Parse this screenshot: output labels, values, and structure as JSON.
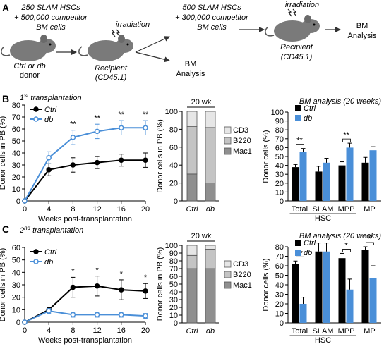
{
  "panel_a": {
    "letter": "A",
    "step1": [
      "250 SLAM HSCs",
      "+ 500,000 competitor",
      "BM cells"
    ],
    "irradiation_1": "irradiation",
    "donor": [
      "Ctrl or db",
      "donor"
    ],
    "recipient_1": [
      "Recipient",
      "(CD45.1)"
    ],
    "step2": [
      "500 SLAM HSCs",
      "+ 300,000 competitor",
      "BM cells"
    ],
    "bm_analysis_1": [
      "BM",
      "Analysis"
    ],
    "irradiation_2": "irradiation",
    "recipient_2": [
      "Recipient",
      "(CD45.1)"
    ],
    "bm_analysis_2": [
      "BM",
      "Analysis"
    ]
  },
  "colors": {
    "ctrl": "#000000",
    "db": "#4a8fd8",
    "cd3": "#e6e6e6",
    "b220": "#c4c4c4",
    "mac1": "#8f8f8f",
    "mouse": "#7a7a7a"
  },
  "chart_data": [
    {
      "id": "B-left",
      "type": "line",
      "panel_letter": "B",
      "title": "1st transplantation",
      "title_main": "1",
      "title_sup": "st",
      "title_rest": " transplantation",
      "xlabel": "Weeks post-transplantation",
      "ylabel": "Donor cells in PB (%)",
      "x": [
        0,
        4,
        8,
        12,
        16,
        20
      ],
      "xlim": [
        0,
        20
      ],
      "ylim": [
        0,
        80
      ],
      "xticks": [
        "0",
        "4",
        "8",
        "12",
        "16",
        "20"
      ],
      "yticks": [
        "0",
        "10",
        "20",
        "30",
        "40",
        "50",
        "60",
        "70",
        "80"
      ],
      "series": [
        {
          "name": "Ctrl",
          "values": [
            0,
            26,
            30,
            32,
            34,
            34
          ],
          "err": [
            0,
            5,
            6,
            5,
            5,
            6
          ]
        },
        {
          "name": "db",
          "values": [
            0,
            36,
            53,
            58,
            61,
            61
          ],
          "err": [
            0,
            5,
            6,
            6,
            6,
            6
          ]
        }
      ],
      "significance": [
        {
          "x": 8,
          "label": "**"
        },
        {
          "x": 12,
          "label": "**"
        },
        {
          "x": 16,
          "label": "**"
        },
        {
          "x": 20,
          "label": "**"
        }
      ]
    },
    {
      "id": "B-mid",
      "type": "bar",
      "stacked": true,
      "title": "20 wk",
      "ylabel": "Donor cells in PB (%)",
      "categories": [
        "Ctrl",
        "db"
      ],
      "ylim": [
        0,
        100
      ],
      "yticks": [
        "0",
        "20",
        "40",
        "60",
        "80",
        "100"
      ],
      "series": [
        {
          "name": "Mac1",
          "values": [
            30,
            20
          ]
        },
        {
          "name": "B220",
          "values": [
            53,
            62
          ]
        },
        {
          "name": "CD3",
          "values": [
            17,
            18
          ]
        }
      ]
    },
    {
      "id": "B-right",
      "type": "bar",
      "title": "BM analysis (20 weeks)",
      "ylabel": "Donor cells (%)",
      "categories": [
        "Total",
        "SLAM",
        "MPP",
        "MP"
      ],
      "hsc_label": "HSC",
      "ylim": [
        0,
        100
      ],
      "yticks": [
        "0",
        "10",
        "20",
        "30",
        "40",
        "50",
        "60",
        "70",
        "80",
        "90",
        "100"
      ],
      "series": [
        {
          "name": "Ctrl",
          "values": [
            38,
            33,
            40,
            43
          ],
          "err": [
            3,
            6,
            4,
            6
          ]
        },
        {
          "name": "db",
          "values": [
            55,
            43,
            60,
            57
          ],
          "err": [
            4,
            5,
            5,
            4
          ]
        }
      ],
      "significance": [
        {
          "category": "Total",
          "label": "**"
        },
        {
          "category": "MPP",
          "label": "**"
        }
      ]
    },
    {
      "id": "C-left",
      "type": "line",
      "panel_letter": "C",
      "title": "2nd transplantation",
      "title_main": "2",
      "title_sup": "nd",
      "title_rest": " transplantation",
      "xlabel": "Weeks post-transplantation",
      "ylabel": "Donor cells in PB (%)",
      "x": [
        0,
        4,
        8,
        12,
        16,
        20
      ],
      "xlim": [
        0,
        20
      ],
      "ylim": [
        0,
        60
      ],
      "xticks": [
        "0",
        "4",
        "8",
        "12",
        "16",
        "20"
      ],
      "yticks": [
        "0",
        "10",
        "20",
        "30",
        "40",
        "50",
        "60"
      ],
      "series": [
        {
          "name": "Ctrl",
          "values": [
            0,
            10,
            28,
            29,
            26,
            25
          ],
          "err": [
            0,
            2,
            8,
            8,
            8,
            6
          ]
        },
        {
          "name": "db",
          "values": [
            0,
            9,
            6,
            6,
            6,
            5
          ],
          "err": [
            0,
            2,
            2,
            2,
            2,
            2
          ]
        }
      ],
      "significance": [
        {
          "x": 8,
          "label": "*"
        },
        {
          "x": 12,
          "label": "*"
        },
        {
          "x": 16,
          "label": "*"
        },
        {
          "x": 20,
          "label": "*"
        }
      ]
    },
    {
      "id": "C-mid",
      "type": "bar",
      "stacked": true,
      "title": "20 wk",
      "ylabel": "Donor cells in PB (%)",
      "categories": [
        "Ctrl",
        "db"
      ],
      "ylim": [
        0,
        100
      ],
      "yticks": [
        "0",
        "10",
        "20",
        "30",
        "40",
        "50",
        "60",
        "70",
        "80",
        "90",
        "100"
      ],
      "series": [
        {
          "name": "Mac1",
          "values": [
            70,
            70
          ]
        },
        {
          "name": "B220",
          "values": [
            17,
            25
          ]
        },
        {
          "name": "CD3",
          "values": [
            13,
            5
          ]
        }
      ]
    },
    {
      "id": "C-right",
      "type": "bar",
      "title": "BM analysis (20 weeks)",
      "ylabel": "Donor cells (%)",
      "categories": [
        "Total",
        "SLAM",
        "MPP",
        "MP"
      ],
      "hsc_label": "HSC",
      "ylim": [
        0,
        80
      ],
      "yticks": [
        "0",
        "10",
        "20",
        "30",
        "40",
        "50",
        "60",
        "70",
        "80"
      ],
      "series": [
        {
          "name": "Ctrl",
          "values": [
            62,
            75,
            68,
            77
          ],
          "err": [
            3,
            9,
            5,
            3
          ]
        },
        {
          "name": "db",
          "values": [
            20,
            75,
            35,
            47
          ],
          "err": [
            7,
            9,
            11,
            13
          ]
        }
      ],
      "significance": [
        {
          "category": "Total",
          "label": "**"
        },
        {
          "category": "MPP",
          "label": "*"
        },
        {
          "category": "MP",
          "label": "*"
        }
      ]
    }
  ]
}
